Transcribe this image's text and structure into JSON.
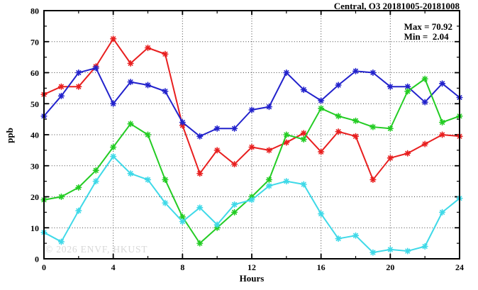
{
  "title": "Central, O3 20181005-20181008",
  "annotation": {
    "max_label": "Max = 70.92",
    "min_label": "Min =  2.04"
  },
  "watermark": "© 2026 ENVF, HKUST",
  "colors": {
    "frame": "#000000",
    "grid": "#444444",
    "background": "#ffffff",
    "watermark_text": "#d8d8d8"
  },
  "chart_data": {
    "type": "line",
    "title": "Central, O3 20181005-20181008",
    "xlabel": "Hours",
    "ylabel": "ppb",
    "xlim": [
      0,
      24
    ],
    "ylim": [
      0,
      80
    ],
    "xticks": [
      0,
      4,
      8,
      12,
      16,
      20,
      24
    ],
    "xtick_minor_step": 2,
    "yticks": [
      0,
      10,
      20,
      30,
      40,
      50,
      60,
      70,
      80
    ],
    "ytick_minor_step": 5,
    "grid": true,
    "legend": "none",
    "marker": "asterisk",
    "stat_max": 70.92,
    "stat_min": 2.04,
    "x": [
      0,
      1,
      2,
      3,
      4,
      5,
      6,
      7,
      8,
      9,
      10,
      11,
      12,
      13,
      14,
      15,
      16,
      17,
      18,
      19,
      20,
      21,
      22,
      23,
      24
    ],
    "series": [
      {
        "name": "red",
        "color": "#e81f1f",
        "values": [
          53,
          55.5,
          55.5,
          62,
          70.92,
          63,
          68,
          66,
          43,
          27.5,
          35,
          30.5,
          36,
          35,
          37.5,
          40.5,
          34.5,
          41,
          39.5,
          25.5,
          32.5,
          34,
          37,
          40,
          39.5
        ]
      },
      {
        "name": "blue",
        "color": "#2222cc",
        "values": [
          46,
          52.5,
          60,
          61.5,
          50,
          57,
          56,
          54,
          44,
          39.5,
          42,
          42,
          48,
          49,
          60,
          54.5,
          51,
          56,
          60.5,
          60,
          55.5,
          55.5,
          50.5,
          56.5,
          52
        ]
      },
      {
        "name": "green",
        "color": "#23cc23",
        "values": [
          19,
          20,
          23,
          28.5,
          36,
          43.5,
          40,
          25.5,
          13.5,
          5,
          10,
          15,
          20,
          25.5,
          40,
          38.5,
          48.5,
          46,
          44.5,
          42.5,
          42,
          54,
          58,
          44,
          46
        ]
      },
      {
        "name": "cyan",
        "color": "#3fd9e8",
        "values": [
          8.5,
          5.5,
          15.5,
          25,
          33,
          27.5,
          25.5,
          18,
          12,
          16.5,
          11,
          17.5,
          19,
          23.5,
          25,
          24,
          14.5,
          6.5,
          7.5,
          2.04,
          3,
          2.5,
          4,
          15,
          19.5
        ]
      }
    ]
  }
}
